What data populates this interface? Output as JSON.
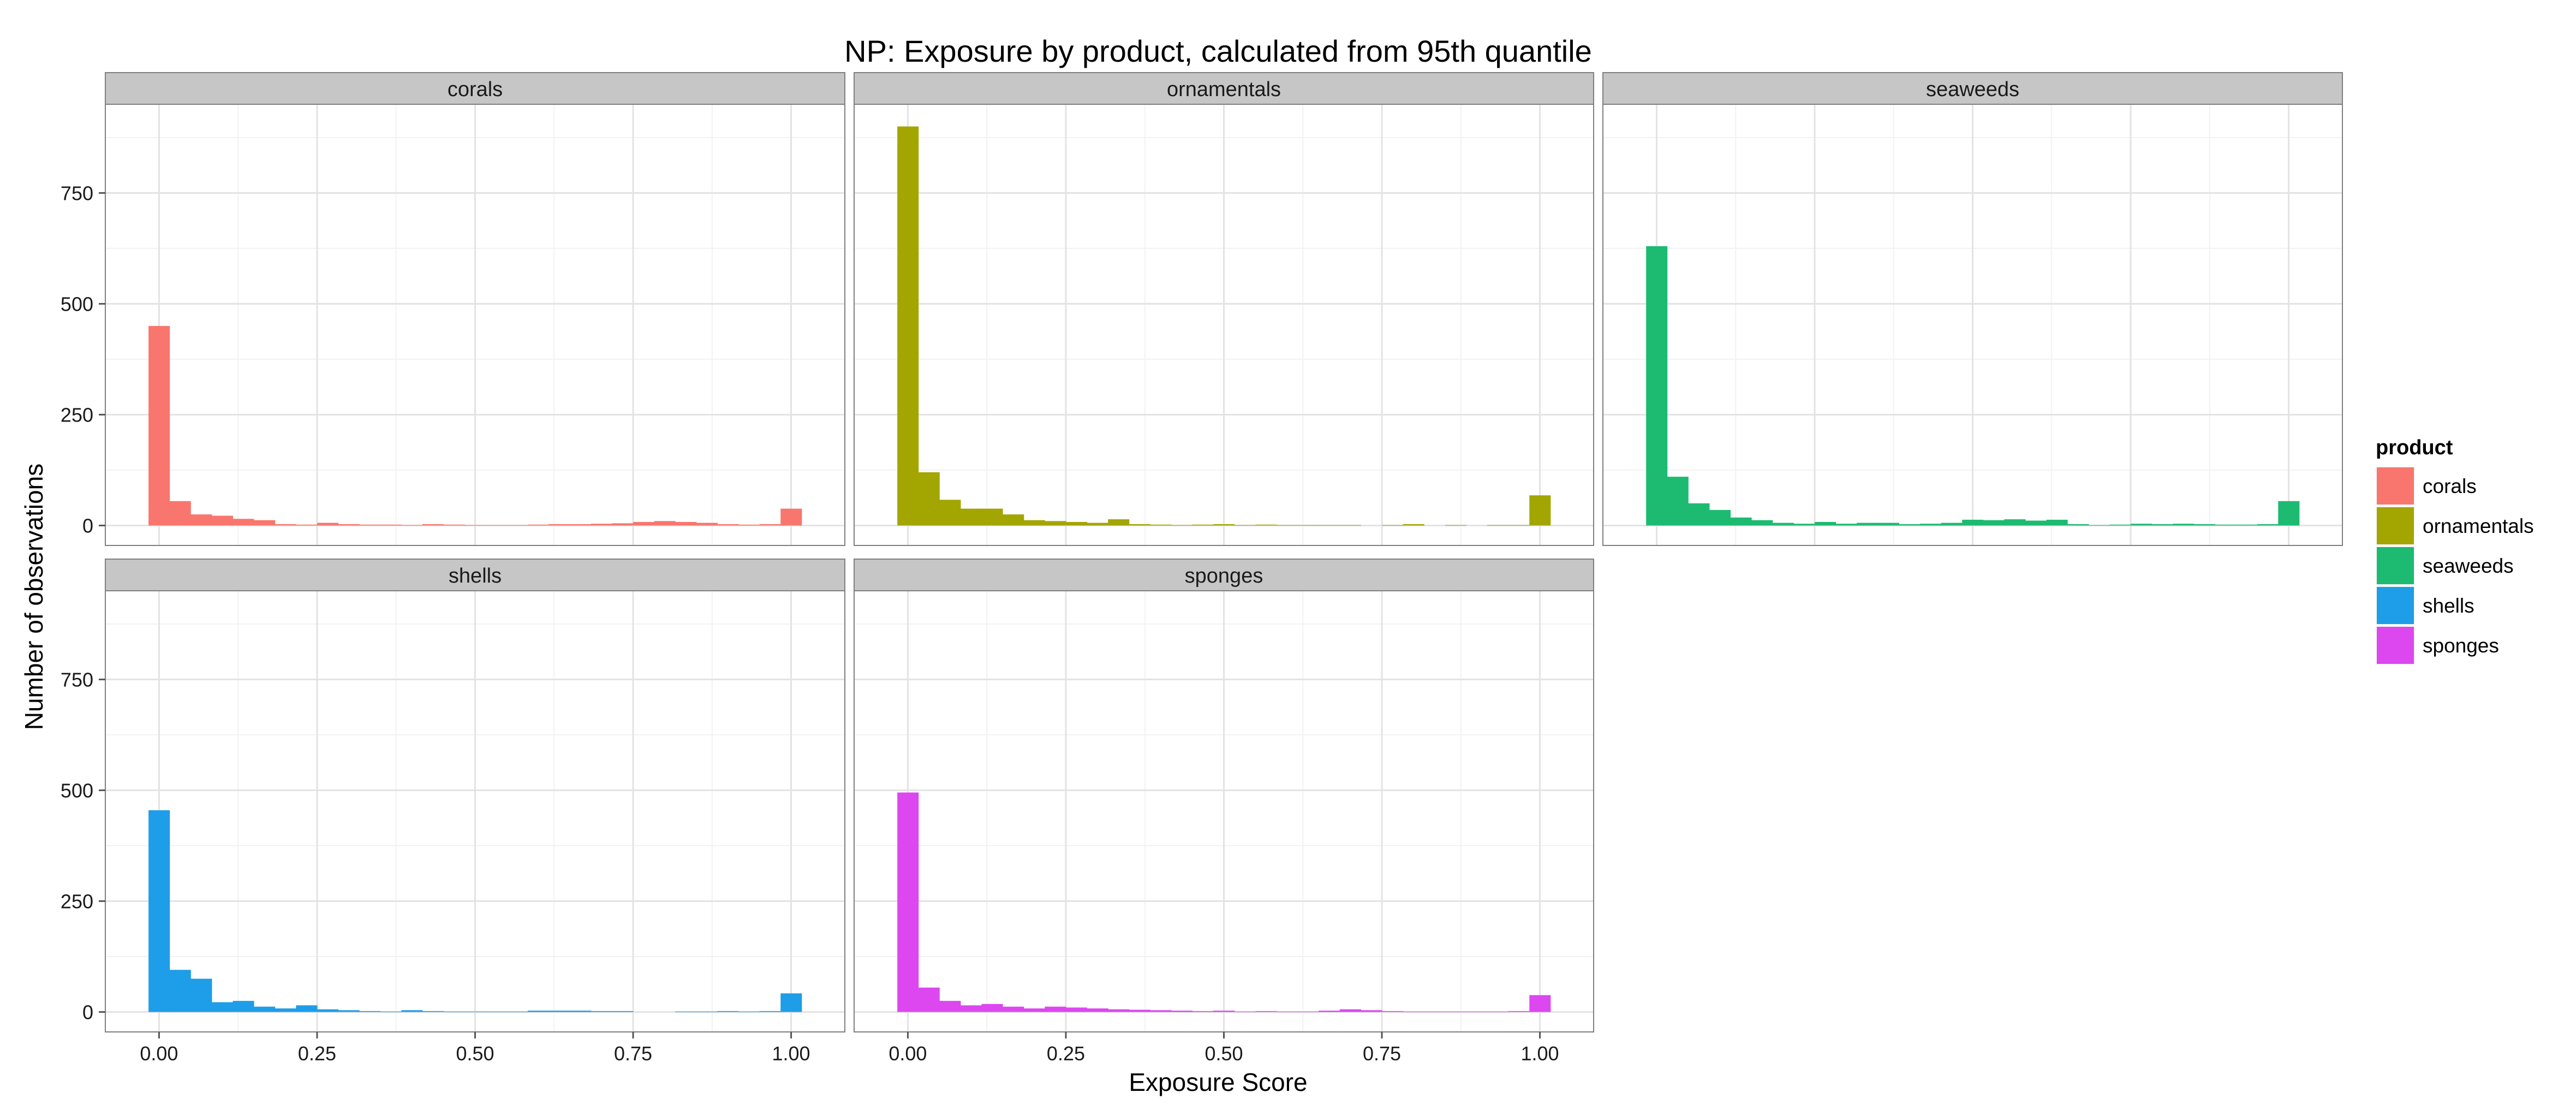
{
  "chart_data": {
    "type": "histogram-facets",
    "title": "NP: Exposure by product, calculated from 95th quantile",
    "xlabel": "Exposure Score",
    "ylabel": "Number of observations",
    "xlim": [
      -0.085,
      1.085
    ],
    "ylim": [
      -45,
      950
    ],
    "x_ticks": [
      0,
      0.25,
      0.5,
      0.75,
      1
    ],
    "x_tick_labels": [
      "0.00",
      "0.25",
      "0.50",
      "0.75",
      "1.00"
    ],
    "y_ticks": [
      0,
      250,
      500,
      750
    ],
    "y_tick_labels": [
      "0",
      "250",
      "500",
      "750"
    ],
    "bin_width": 0.0333,
    "bin_centers": [
      0.0,
      0.0333,
      0.0667,
      0.1,
      0.1333,
      0.1667,
      0.2,
      0.2333,
      0.2667,
      0.3,
      0.3333,
      0.3667,
      0.4,
      0.4333,
      0.4667,
      0.5,
      0.5333,
      0.5667,
      0.6,
      0.6333,
      0.6667,
      0.7,
      0.7333,
      0.7667,
      0.8,
      0.8333,
      0.8667,
      0.9,
      0.9333,
      0.9667,
      1.0
    ],
    "grid": true,
    "legend": {
      "title": "product",
      "placement": "right",
      "items": [
        {
          "label": "corals",
          "color": "#F8766D"
        },
        {
          "label": "ornamentals",
          "color": "#A3A500"
        },
        {
          "label": "seaweeds",
          "color": "#1DBB71"
        },
        {
          "label": "shells",
          "color": "#1E9DE8"
        },
        {
          "label": "sponges",
          "color": "#DC47F0"
        }
      ]
    },
    "series": [
      {
        "name": "corals",
        "color": "#F8766D",
        "values": [
          450,
          55,
          25,
          22,
          15,
          12,
          3,
          2,
          6,
          3,
          2,
          2,
          1,
          3,
          2,
          1,
          1,
          1,
          2,
          3,
          3,
          4,
          5,
          8,
          10,
          8,
          6,
          3,
          2,
          3,
          38
        ]
      },
      {
        "name": "ornamentals",
        "color": "#A3A500",
        "values": [
          900,
          120,
          58,
          38,
          38,
          25,
          12,
          10,
          8,
          6,
          14,
          3,
          2,
          1,
          2,
          3,
          1,
          2,
          1,
          1,
          1,
          1,
          0,
          1,
          3,
          0,
          1,
          0,
          1,
          1,
          68
        ]
      },
      {
        "name": "seaweeds",
        "color": "#1DBB71",
        "values": [
          630,
          110,
          50,
          35,
          18,
          12,
          6,
          4,
          8,
          4,
          6,
          6,
          3,
          4,
          6,
          13,
          12,
          14,
          11,
          13,
          3,
          1,
          2,
          4,
          3,
          4,
          3,
          2,
          2,
          3,
          55
        ]
      },
      {
        "name": "shells",
        "color": "#1E9DE8",
        "values": [
          455,
          95,
          75,
          22,
          25,
          12,
          8,
          15,
          6,
          4,
          2,
          1,
          4,
          2,
          1,
          1,
          1,
          1,
          3,
          3,
          3,
          2,
          2,
          0,
          0,
          1,
          1,
          2,
          1,
          2,
          42
        ]
      },
      {
        "name": "sponges",
        "color": "#DC47F0",
        "values": [
          495,
          55,
          25,
          15,
          18,
          12,
          8,
          12,
          10,
          8,
          6,
          5,
          4,
          3,
          2,
          3,
          1,
          2,
          1,
          1,
          3,
          6,
          4,
          2,
          1,
          1,
          1,
          1,
          1,
          2,
          38
        ]
      }
    ],
    "panels": [
      {
        "label": "corals",
        "series": 0,
        "row": 0,
        "col": 0
      },
      {
        "label": "ornamentals",
        "series": 1,
        "row": 0,
        "col": 1
      },
      {
        "label": "seaweeds",
        "series": 2,
        "row": 0,
        "col": 2
      },
      {
        "label": "shells",
        "series": 3,
        "row": 1,
        "col": 0
      },
      {
        "label": "sponges",
        "series": 4,
        "row": 1,
        "col": 1
      }
    ]
  }
}
